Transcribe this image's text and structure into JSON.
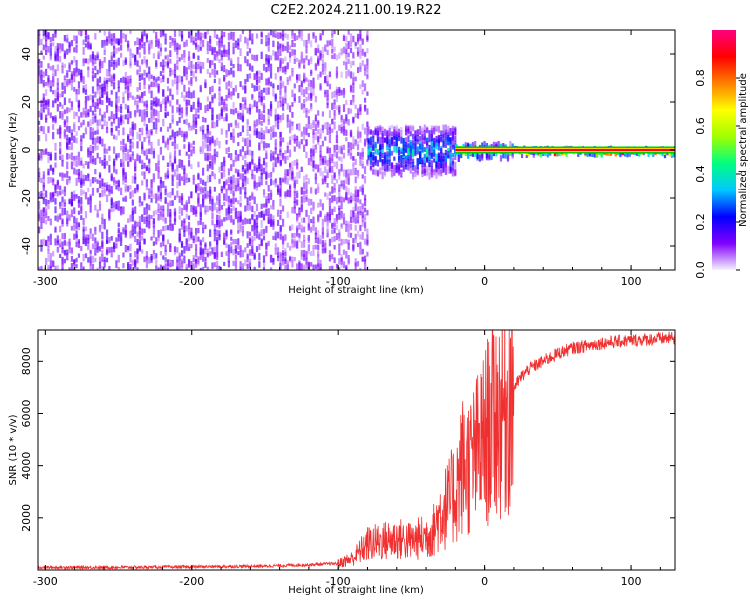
{
  "title": "C2E2.2024.211.00.19.R22",
  "colors": {
    "snr_line": "#f03030",
    "spectrogram_low": "#6a00ff",
    "spectrogram_peak": "#ff0000",
    "colorbar_stops": [
      "#f6f0ff",
      "#8000ff",
      "#0000ff",
      "#00c8ff",
      "#00ff80",
      "#a0ff00",
      "#ffff00",
      "#ff8000",
      "#ff0000",
      "#ff0080"
    ]
  },
  "chart_data": [
    {
      "type": "heatmap",
      "xlabel": "Height of straight line (km)",
      "ylabel": "Frequency (Hz)",
      "xlim": [
        -305,
        130
      ],
      "ylim": [
        -50,
        50
      ],
      "xticks": [
        -300,
        -200,
        -100,
        0,
        100
      ],
      "xtick_labels": [
        "-300",
        "-200",
        "-100",
        "0",
        "100"
      ],
      "yticks": [
        -40,
        -20,
        0,
        20,
        40
      ],
      "ytick_labels": [
        "-40",
        "-20",
        "0",
        "20",
        "40"
      ],
      "grid": false,
      "colorbar": {
        "label": "Normalized spectral amplitude",
        "range": [
          0,
          1
        ],
        "ticks": [
          0.0,
          0.2,
          0.4,
          0.6,
          0.8
        ],
        "tick_labels": [
          "0.0",
          "0.2",
          "0.4",
          "0.6",
          "0.8"
        ]
      },
      "description_regions": [
        {
          "x": [
            -305,
            -140
          ],
          "freq_halfwidth": 50,
          "amplitude": 0.12
        },
        {
          "x": [
            -140,
            -80
          ],
          "freq_halfwidth": 50,
          "amplitude": 0.1
        },
        {
          "x": [
            -80,
            -20
          ],
          "freq_halfwidth": 10,
          "amplitude": 0.35
        },
        {
          "x": [
            -20,
            20
          ],
          "freq_halfwidth": 3,
          "amplitude": 0.6
        },
        {
          "x": [
            20,
            130
          ],
          "freq_halfwidth": 1,
          "amplitude": 0.95
        }
      ]
    },
    {
      "type": "line",
      "xlabel": "Height of straight line (km)",
      "ylabel": "SNR (10 * v/v)",
      "xlim": [
        -305,
        130
      ],
      "ylim": [
        0,
        9200
      ],
      "xticks": [
        -300,
        -200,
        -100,
        0,
        100
      ],
      "xtick_labels": [
        "-300",
        "-200",
        "-100",
        "0",
        "100"
      ],
      "yticks": [
        2000,
        4000,
        6000,
        8000
      ],
      "ytick_labels": [
        "2000",
        "4000",
        "6000",
        "8000"
      ],
      "grid": false,
      "series": [
        {
          "x": [
            -305,
            -250,
            -200,
            -150,
            -120,
            -100,
            -90,
            -80,
            -70,
            -60,
            -50,
            -40,
            -35,
            -30,
            -25,
            -20,
            -15,
            -10,
            -5,
            0,
            5,
            10,
            15,
            20,
            25,
            30,
            40,
            50,
            60,
            80,
            100,
            130
          ],
          "y": [
            100,
            100,
            120,
            150,
            200,
            250,
            450,
            1000,
            1100,
            1200,
            1100,
            1300,
            1500,
            2200,
            2500,
            3000,
            4000,
            4000,
            4500,
            5000,
            5800,
            6000,
            6300,
            7000,
            7400,
            7700,
            8000,
            8300,
            8500,
            8700,
            8800,
            8900
          ]
        }
      ]
    }
  ]
}
